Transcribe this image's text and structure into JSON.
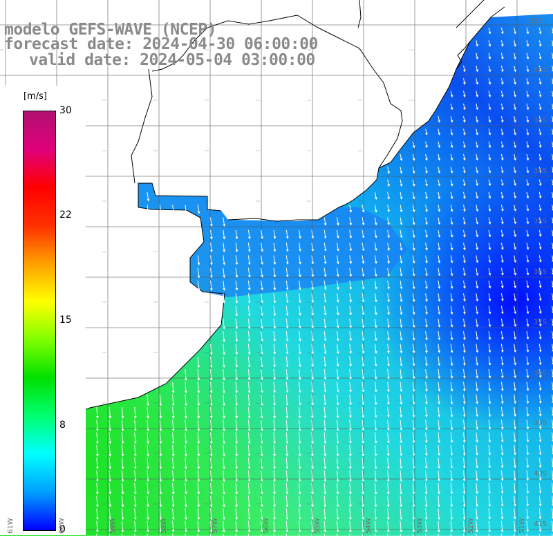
{
  "title": {
    "model": "modelo GEFS-WAVE (NCEP)",
    "forecast": "forecast date: 2024-04-30 06:00:00",
    "valid": "valid date: 2024-05-04 03:00:00"
  },
  "legend": {
    "units": "[m/s]",
    "ticks": [
      "30",
      "22",
      "15",
      "8",
      "0"
    ],
    "tick_values": [
      30,
      22,
      15,
      8,
      0
    ],
    "range": [
      0,
      30
    ],
    "colors": [
      "#0000ff",
      "#00a0ff",
      "#00ffff",
      "#00ff70",
      "#00e000",
      "#80ff00",
      "#ffff00",
      "#ffa000",
      "#ff3000",
      "#ff0000",
      "#e0007a",
      "#b01070"
    ]
  },
  "map": {
    "lat_labels": [
      "31S",
      "32S",
      "33S",
      "34S",
      "35S",
      "36S",
      "37S",
      "38S",
      "39S",
      "40S",
      "41S"
    ],
    "lon_labels": [
      "61W",
      "60W",
      "59W",
      "58W",
      "57W",
      "56W",
      "55W",
      "54W",
      "53W",
      "52W",
      "51W"
    ],
    "grid": true,
    "ocean_color_range": "blue-cyan-green",
    "arrow_color": "#ffffff"
  }
}
